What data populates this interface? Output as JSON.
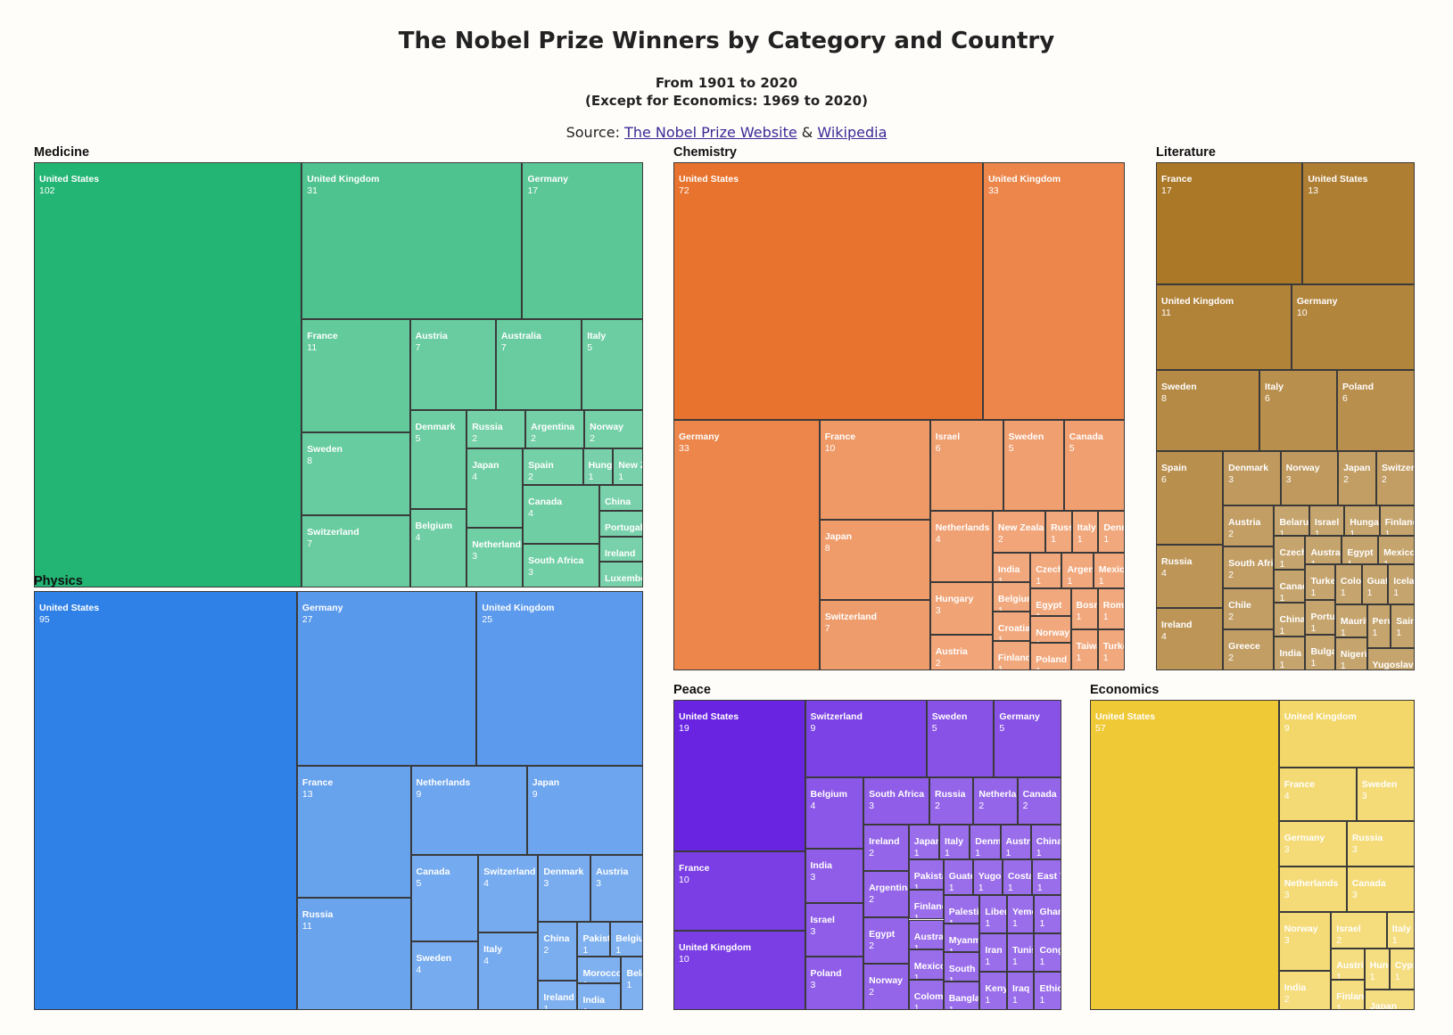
{
  "page": {
    "title": "The Nobel Prize Winners by Category and Country",
    "subtitle_line1": "From 1901 to 2020",
    "subtitle_line2": "(Except for Economics: 1969 to 2020)",
    "source_prefix": "Source: ",
    "source_link1": "The Nobel Prize Website",
    "source_amp": " & ",
    "source_link2": "Wikipedia"
  },
  "chart_data": [
    {
      "type": "treemap",
      "category": "Medicine",
      "color": "#1fb371",
      "items": [
        {
          "country": "United States",
          "value": 102
        },
        {
          "country": "United Kingdom",
          "value": 31
        },
        {
          "country": "Germany",
          "value": 17
        },
        {
          "country": "France",
          "value": 11
        },
        {
          "country": "Sweden",
          "value": 8
        },
        {
          "country": "Switzerland",
          "value": 7
        },
        {
          "country": "Austria",
          "value": 7
        },
        {
          "country": "Australia",
          "value": 7
        },
        {
          "country": "Italy",
          "value": 5
        },
        {
          "country": "Denmark",
          "value": 5
        },
        {
          "country": "Belgium",
          "value": 4
        },
        {
          "country": "Russia",
          "value": 2
        },
        {
          "country": "Argentina",
          "value": 2
        },
        {
          "country": "Norway",
          "value": 2
        },
        {
          "country": "Japan",
          "value": 4
        },
        {
          "country": "Netherlands",
          "value": 3
        },
        {
          "country": "Spain",
          "value": 2
        },
        {
          "country": "Hungary",
          "value": 1
        },
        {
          "country": "New Zealand",
          "value": 1
        },
        {
          "country": "Canada",
          "value": 4
        },
        {
          "country": "South Africa",
          "value": 3
        },
        {
          "country": "China",
          "value": 1
        },
        {
          "country": "Portugal",
          "value": 1
        },
        {
          "country": "Ireland",
          "value": 1
        },
        {
          "country": "Luxembourg",
          "value": 1
        }
      ]
    },
    {
      "type": "treemap",
      "category": "Physics",
      "color": "#2b7de6",
      "items": [
        {
          "country": "United States",
          "value": 95
        },
        {
          "country": "Germany",
          "value": 27
        },
        {
          "country": "United Kingdom",
          "value": 25
        },
        {
          "country": "France",
          "value": 13
        },
        {
          "country": "Russia",
          "value": 11
        },
        {
          "country": "Netherlands",
          "value": 9
        },
        {
          "country": "Japan",
          "value": 9
        },
        {
          "country": "Canada",
          "value": 5
        },
        {
          "country": "Sweden",
          "value": 4
        },
        {
          "country": "Switzerland",
          "value": 4
        },
        {
          "country": "Italy",
          "value": 4
        },
        {
          "country": "Denmark",
          "value": 3
        },
        {
          "country": "Austria",
          "value": 3
        },
        {
          "country": "China",
          "value": 2
        },
        {
          "country": "Ireland",
          "value": 1
        },
        {
          "country": "Pakistan",
          "value": 1
        },
        {
          "country": "Belgium",
          "value": 1
        },
        {
          "country": "Morocco",
          "value": 1
        },
        {
          "country": "India",
          "value": 1
        },
        {
          "country": "Belarus",
          "value": 1
        }
      ]
    },
    {
      "type": "treemap",
      "category": "Chemistry",
      "color": "#e8702a",
      "items": [
        {
          "country": "United States",
          "value": 72
        },
        {
          "country": "United Kingdom",
          "value": 33
        },
        {
          "country": "Germany",
          "value": 33
        },
        {
          "country": "France",
          "value": 10
        },
        {
          "country": "Japan",
          "value": 8
        },
        {
          "country": "Switzerland",
          "value": 7
        },
        {
          "country": "Israel",
          "value": 6
        },
        {
          "country": "Sweden",
          "value": 5
        },
        {
          "country": "Canada",
          "value": 5
        },
        {
          "country": "Netherlands",
          "value": 4
        },
        {
          "country": "Hungary",
          "value": 3
        },
        {
          "country": "Austria",
          "value": 2
        },
        {
          "country": "New Zealand",
          "value": 2
        },
        {
          "country": "Russia",
          "value": 1
        },
        {
          "country": "Italy",
          "value": 1
        },
        {
          "country": "Denmark",
          "value": 1
        },
        {
          "country": "India",
          "value": 1
        },
        {
          "country": "Belgium",
          "value": 1
        },
        {
          "country": "Croatia",
          "value": 1
        },
        {
          "country": "Finland",
          "value": 1
        },
        {
          "country": "Czechia",
          "value": 1
        },
        {
          "country": "Argentina",
          "value": 1
        },
        {
          "country": "Mexico",
          "value": 1
        },
        {
          "country": "Egypt",
          "value": 1
        },
        {
          "country": "Norway",
          "value": 1
        },
        {
          "country": "Poland",
          "value": 1
        },
        {
          "country": "Bosnia",
          "value": 1
        },
        {
          "country": "Romania",
          "value": 1
        },
        {
          "country": "Taiwan",
          "value": 1
        },
        {
          "country": "Turkey",
          "value": 1
        }
      ]
    },
    {
      "type": "treemap",
      "category": "Literature",
      "color": "#a87523",
      "items": [
        {
          "country": "France",
          "value": 17
        },
        {
          "country": "United States",
          "value": 13
        },
        {
          "country": "United Kingdom",
          "value": 11
        },
        {
          "country": "Germany",
          "value": 10
        },
        {
          "country": "Sweden",
          "value": 8
        },
        {
          "country": "Italy",
          "value": 6
        },
        {
          "country": "Poland",
          "value": 6
        },
        {
          "country": "Spain",
          "value": 6
        },
        {
          "country": "Russia",
          "value": 4
        },
        {
          "country": "Ireland",
          "value": 4
        },
        {
          "country": "Denmark",
          "value": 3
        },
        {
          "country": "Norway",
          "value": 3
        },
        {
          "country": "Japan",
          "value": 2
        },
        {
          "country": "Switzerland",
          "value": 2
        },
        {
          "country": "Austria",
          "value": 2
        },
        {
          "country": "South Africa",
          "value": 2
        },
        {
          "country": "Chile",
          "value": 2
        },
        {
          "country": "Greece",
          "value": 2
        },
        {
          "country": "Belarus",
          "value": 1
        },
        {
          "country": "Israel",
          "value": 1
        },
        {
          "country": "Hungary",
          "value": 1
        },
        {
          "country": "Finland",
          "value": 1
        },
        {
          "country": "Czechia",
          "value": 1
        },
        {
          "country": "Canada",
          "value": 1
        },
        {
          "country": "China",
          "value": 1
        },
        {
          "country": "India",
          "value": 1
        },
        {
          "country": "Australia",
          "value": 1
        },
        {
          "country": "Egypt",
          "value": 1
        },
        {
          "country": "Mexico",
          "value": 1
        },
        {
          "country": "Turkey",
          "value": 1
        },
        {
          "country": "Portugal",
          "value": 1
        },
        {
          "country": "Bulgaria",
          "value": 1
        },
        {
          "country": "Colombia",
          "value": 1
        },
        {
          "country": "Guatemala",
          "value": 1
        },
        {
          "country": "Iceland",
          "value": 1
        },
        {
          "country": "Mauritius",
          "value": 1
        },
        {
          "country": "Nigeria",
          "value": 1
        },
        {
          "country": "Peru",
          "value": 1
        },
        {
          "country": "Saint Lucia",
          "value": 1
        },
        {
          "country": "Yugoslavia",
          "value": 1
        }
      ]
    },
    {
      "type": "treemap",
      "category": "Peace",
      "color": "#6520e0",
      "items": [
        {
          "country": "United States",
          "value": 19
        },
        {
          "country": "France",
          "value": 10
        },
        {
          "country": "United Kingdom",
          "value": 10
        },
        {
          "country": "Switzerland",
          "value": 9
        },
        {
          "country": "Sweden",
          "value": 5
        },
        {
          "country": "Germany",
          "value": 5
        },
        {
          "country": "Belgium",
          "value": 4
        },
        {
          "country": "India",
          "value": 3
        },
        {
          "country": "Israel",
          "value": 3
        },
        {
          "country": "Poland",
          "value": 3
        },
        {
          "country": "South Africa",
          "value": 3
        },
        {
          "country": "Russia",
          "value": 2
        },
        {
          "country": "Netherlands",
          "value": 2
        },
        {
          "country": "Canada",
          "value": 2
        },
        {
          "country": "Ireland",
          "value": 2
        },
        {
          "country": "Argentina",
          "value": 2
        },
        {
          "country": "Egypt",
          "value": 2
        },
        {
          "country": "Norway",
          "value": 2
        },
        {
          "country": "Japan",
          "value": 1
        },
        {
          "country": "Italy",
          "value": 1
        },
        {
          "country": "Denmark",
          "value": 1
        },
        {
          "country": "Austria",
          "value": 1
        },
        {
          "country": "China",
          "value": 1
        },
        {
          "country": "Pakistan",
          "value": 1
        },
        {
          "country": "Finland",
          "value": 1
        },
        {
          "country": "Australia",
          "value": 1
        },
        {
          "country": "Mexico",
          "value": 1
        },
        {
          "country": "Colombia",
          "value": 1
        },
        {
          "country": "Guatemala",
          "value": 1
        },
        {
          "country": "Yugoslavia",
          "value": 1
        },
        {
          "country": "Costa Rica",
          "value": 1
        },
        {
          "country": "East Timor",
          "value": 1
        },
        {
          "country": "Palestine",
          "value": 1
        },
        {
          "country": "Myanmar",
          "value": 1
        },
        {
          "country": "South Korea",
          "value": 1
        },
        {
          "country": "Bangladesh",
          "value": 1
        },
        {
          "country": "Liberia",
          "value": 1
        },
        {
          "country": "Yemen",
          "value": 1
        },
        {
          "country": "Ghana",
          "value": 1
        },
        {
          "country": "Iran",
          "value": 1
        },
        {
          "country": "Kenya",
          "value": 1
        },
        {
          "country": "Tunisia",
          "value": 1
        },
        {
          "country": "Congo",
          "value": 1
        },
        {
          "country": "Iraq",
          "value": 1
        },
        {
          "country": "Ethiopia",
          "value": 1
        }
      ]
    },
    {
      "type": "treemap",
      "category": "Economics",
      "color": "#efc832",
      "items": [
        {
          "country": "United States",
          "value": 57
        },
        {
          "country": "United Kingdom",
          "value": 9
        },
        {
          "country": "France",
          "value": 4
        },
        {
          "country": "Sweden",
          "value": 3
        },
        {
          "country": "Germany",
          "value": 3
        },
        {
          "country": "Russia",
          "value": 3
        },
        {
          "country": "Netherlands",
          "value": 3
        },
        {
          "country": "Canada",
          "value": 3
        },
        {
          "country": "Norway",
          "value": 3
        },
        {
          "country": "India",
          "value": 2
        },
        {
          "country": "Israel",
          "value": 2
        },
        {
          "country": "Italy",
          "value": 1
        },
        {
          "country": "Austria",
          "value": 1
        },
        {
          "country": "Finland",
          "value": 1
        },
        {
          "country": "Hungary",
          "value": 1
        },
        {
          "country": "Cyprus",
          "value": 1
        },
        {
          "country": "Japan",
          "value": 1
        }
      ]
    }
  ]
}
